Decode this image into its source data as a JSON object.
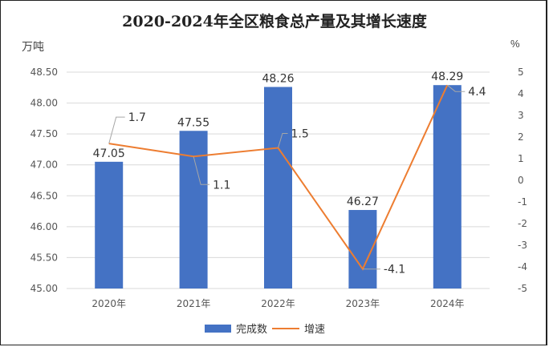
{
  "title": "2020-2024年全区粮食总产量及其增长速度",
  "units": {
    "left": "万吨",
    "right": "%"
  },
  "legend": {
    "bar_label": "完成数",
    "line_label": "增速"
  },
  "colors": {
    "bar": "#4472C4",
    "line": "#ED7D31",
    "grid": "#D9D9D9"
  },
  "chart_data": {
    "type": "bar",
    "title": "2020-2024年全区粮食总产量及其增长速度",
    "categories": [
      "2020年",
      "2021年",
      "2022年",
      "2023年",
      "2024年"
    ],
    "series": [
      {
        "name": "完成数",
        "type": "bar",
        "axis": "left",
        "unit": "万吨",
        "values": [
          47.05,
          47.55,
          48.26,
          46.27,
          48.29
        ]
      },
      {
        "name": "增速",
        "type": "line",
        "axis": "right",
        "unit": "%",
        "values": [
          1.7,
          1.1,
          1.5,
          -4.1,
          4.4
        ]
      }
    ],
    "ylabel": "万吨",
    "y2label": "%",
    "ylim": [
      45.0,
      48.5
    ],
    "y2lim": [
      -5,
      5
    ],
    "yticks": [
      "45.00",
      "45.50",
      "46.00",
      "46.50",
      "47.00",
      "47.50",
      "48.00",
      "48.50"
    ],
    "y2ticks": [
      "-5",
      "-4",
      "-3",
      "-2",
      "-1",
      "0",
      "1",
      "2",
      "3",
      "4",
      "5"
    ],
    "grid": true,
    "legend_position": "bottom"
  }
}
